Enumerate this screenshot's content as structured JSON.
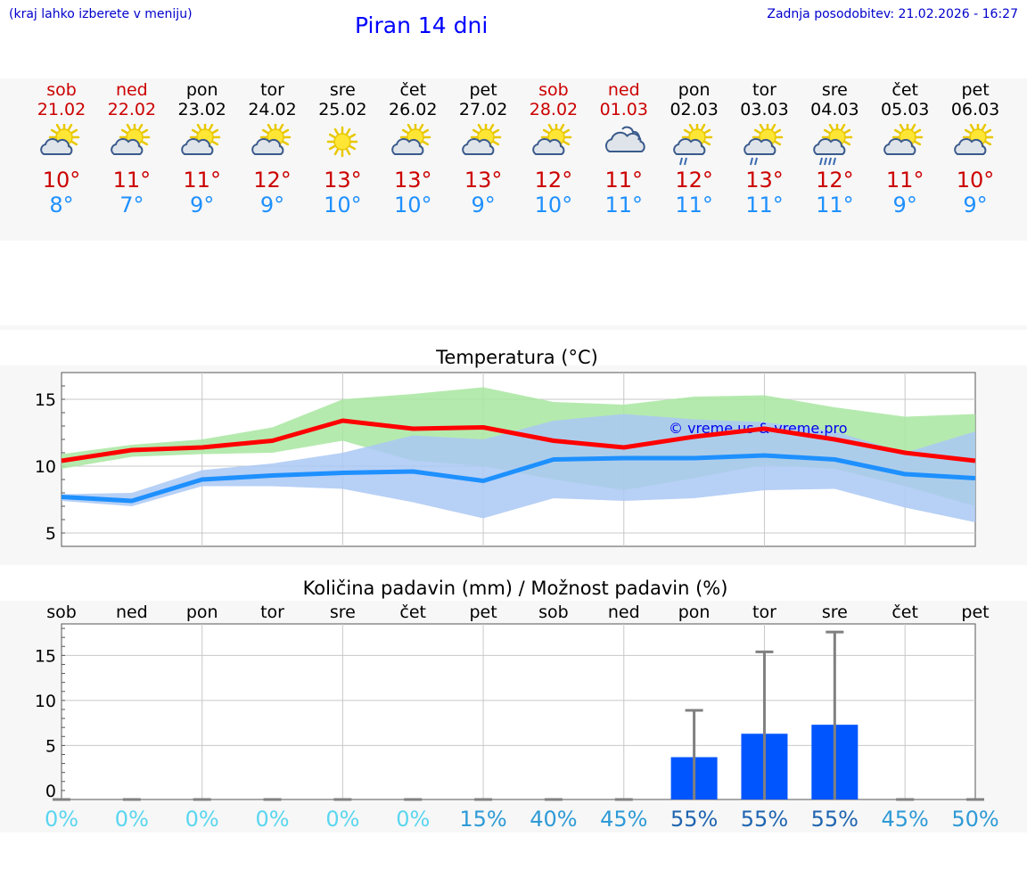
{
  "header": {
    "hint": "(kraj lahko izberete v meniju)",
    "title": "Piran 14 dni",
    "updated": "Zadnja posodobitev: 21.02.2026 - 16:27"
  },
  "colors": {
    "weekend": "#cc0000",
    "weekday": "#000000",
    "max": "#ff0000",
    "min": "#1e90ff",
    "bar": "#0055ff"
  },
  "days": [
    {
      "name": "sob",
      "date": "21.02",
      "weekend": true,
      "icon": "sun-cloud-icon",
      "max": "10°",
      "min": "8°"
    },
    {
      "name": "ned",
      "date": "22.02",
      "weekend": true,
      "icon": "sun-cloud-icon",
      "max": "11°",
      "min": "7°"
    },
    {
      "name": "pon",
      "date": "23.02",
      "weekend": false,
      "icon": "sun-cloud-icon",
      "max": "11°",
      "min": "9°"
    },
    {
      "name": "tor",
      "date": "24.02",
      "weekend": false,
      "icon": "sun-cloud-icon",
      "max": "12°",
      "min": "9°"
    },
    {
      "name": "sre",
      "date": "25.02",
      "weekend": false,
      "icon": "sun-icon",
      "max": "13°",
      "min": "10°"
    },
    {
      "name": "čet",
      "date": "26.02",
      "weekend": false,
      "icon": "sun-cloud-icon",
      "max": "13°",
      "min": "10°"
    },
    {
      "name": "pet",
      "date": "27.02",
      "weekend": false,
      "icon": "sun-cloud-icon",
      "max": "13°",
      "min": "9°"
    },
    {
      "name": "sob",
      "date": "28.02",
      "weekend": true,
      "icon": "sun-cloud-icon",
      "max": "12°",
      "min": "10°"
    },
    {
      "name": "ned",
      "date": "01.03",
      "weekend": true,
      "icon": "cloud-icon",
      "max": "11°",
      "min": "11°"
    },
    {
      "name": "pon",
      "date": "02.03",
      "weekend": false,
      "icon": "sun-cloud-rain-icon",
      "max": "12°",
      "min": "11°"
    },
    {
      "name": "tor",
      "date": "03.03",
      "weekend": false,
      "icon": "sun-cloud-rain-icon",
      "max": "13°",
      "min": "11°"
    },
    {
      "name": "sre",
      "date": "04.03",
      "weekend": false,
      "icon": "sun-cloud-heavy-rain-icon",
      "max": "12°",
      "min": "11°"
    },
    {
      "name": "čet",
      "date": "05.03",
      "weekend": false,
      "icon": "sun-cloud-icon",
      "max": "11°",
      "min": "9°"
    },
    {
      "name": "pet",
      "date": "06.03",
      "weekend": false,
      "icon": "sun-cloud-icon",
      "max": "10°",
      "min": "9°"
    }
  ],
  "chart_data": [
    {
      "type": "line",
      "title": "Temperatura (°C)",
      "watermark": "© vreme.us & vreme.pro",
      "ylim": [
        4,
        17
      ],
      "yticks": [
        "5",
        "10",
        "15"
      ],
      "x_index": [
        0,
        1,
        2,
        3,
        4,
        5,
        6,
        7,
        8,
        9,
        10,
        11,
        12,
        13
      ],
      "series": [
        {
          "name": "max",
          "color": "#ff0000",
          "values": [
            10.4,
            11.2,
            11.4,
            11.9,
            13.4,
            12.8,
            12.9,
            11.9,
            11.4,
            12.2,
            12.8,
            12.0,
            11.0,
            10.4
          ]
        },
        {
          "name": "min",
          "color": "#1e90ff",
          "values": [
            7.7,
            7.4,
            9.0,
            9.3,
            9.5,
            9.6,
            8.9,
            10.5,
            10.6,
            10.6,
            10.8,
            10.5,
            9.4,
            9.1
          ]
        }
      ],
      "bands": [
        {
          "name": "max-range",
          "color": "#a8e6a0",
          "low": [
            9.8,
            10.7,
            10.9,
            11.0,
            11.9,
            10.4,
            10.0,
            9.0,
            8.2,
            9.1,
            10.1,
            9.8,
            8.5,
            7.0
          ],
          "high": [
            10.9,
            11.6,
            12.0,
            12.9,
            15.0,
            15.4,
            15.9,
            14.8,
            14.6,
            15.2,
            15.3,
            14.4,
            13.7,
            13.9
          ]
        },
        {
          "name": "min-range",
          "color": "#aac8f4",
          "low": [
            7.4,
            7.0,
            8.5,
            8.5,
            8.3,
            7.3,
            6.1,
            7.6,
            7.4,
            7.6,
            8.2,
            8.3,
            6.9,
            5.8
          ],
          "high": [
            7.9,
            8.0,
            9.7,
            10.2,
            11.0,
            12.3,
            12.0,
            13.4,
            13.9,
            13.5,
            13.3,
            12.6,
            11.0,
            12.6
          ]
        }
      ]
    },
    {
      "type": "bar",
      "title": "Količina padavin (mm) / Možnost padavin (%)",
      "categories": [
        "sob",
        "ned",
        "pon",
        "tor",
        "sre",
        "čet",
        "pet",
        "sob",
        "ned",
        "pon",
        "tor",
        "sre",
        "čet",
        "pet"
      ],
      "ylim": [
        -1,
        18.5
      ],
      "yticks": [
        "0",
        "5",
        "10",
        "15"
      ],
      "values": [
        0,
        0,
        0,
        0,
        0,
        0,
        0,
        0,
        0,
        3.7,
        6.3,
        7.3,
        0,
        0
      ],
      "error_max": [
        0,
        0,
        0,
        0,
        0,
        0,
        0,
        0,
        0,
        8.9,
        15.4,
        17.6,
        0,
        0
      ],
      "probability": [
        "0%",
        "0%",
        "0%",
        "0%",
        "0%",
        "0%",
        "15%",
        "40%",
        "45%",
        "55%",
        "55%",
        "55%",
        "45%",
        "50%"
      ],
      "probability_colors": [
        "#5ad6f0",
        "#5ad6f0",
        "#5ad6f0",
        "#5ad6f0",
        "#5ad6f0",
        "#5ad6f0",
        "#2e9ad6",
        "#2e9ad6",
        "#2e9ad6",
        "#1f64b0",
        "#1f64b0",
        "#1f64b0",
        "#2e9ad6",
        "#2e9ad6"
      ]
    }
  ]
}
